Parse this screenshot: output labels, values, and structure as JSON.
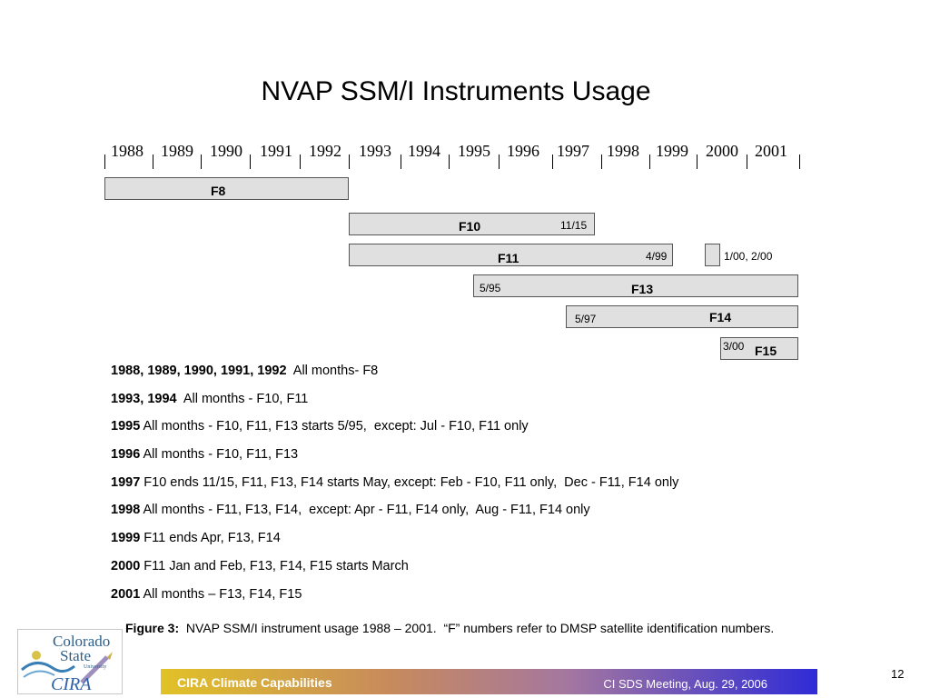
{
  "title": "NVAP SSM/I Instruments Usage",
  "years": [
    "1988",
    "1989",
    "1990",
    "1991",
    "1992",
    "1993",
    "1994",
    "1995",
    "1996",
    "1997",
    "1998",
    "1999",
    "2000",
    "2001"
  ],
  "bars": [
    {
      "name": "F8",
      "start_label": "",
      "end_label": ""
    },
    {
      "name": "F10",
      "start_label": "",
      "end_label": "11/15"
    },
    {
      "name": "F11",
      "start_label": "",
      "end_label": "4/99"
    },
    {
      "name": "F11 2000",
      "start_label": "",
      "end_label": "1/00, 2/00"
    },
    {
      "name": "F13",
      "start_label": "5/95",
      "end_label": ""
    },
    {
      "name": "F14",
      "start_label": "5/97",
      "end_label": ""
    },
    {
      "name": "F15",
      "start_label": "3/00",
      "end_label": ""
    }
  ],
  "bar_labels": {
    "f8": "F8",
    "f10": "F10",
    "f11": "F11",
    "f13": "F13",
    "f14": "F14",
    "f15": "F15"
  },
  "notes": {
    "f10_end": "11/15",
    "f11_end": "4/99",
    "f11_2000": "1/00, 2/00",
    "f13_start": "5/95",
    "f14_start": "5/97",
    "f15_start": "3/00"
  },
  "usage_lines": [
    {
      "years": "1988, 1989, 1990, 1991, 1992",
      "text": "  All months- F8"
    },
    {
      "years": "1993, 1994",
      "text": "  All months - F10, F11"
    },
    {
      "years": "1995",
      "text": " All months - F10, F11, F13 starts 5/95,  except: Jul - F10, F11 only"
    },
    {
      "years": "1996",
      "text": " All months - F10, F11, F13"
    },
    {
      "years": "1997",
      "text": " F10 ends 11/15, F11, F13, F14 starts May, except: Feb - F10, F11 only,  Dec - F11, F14 only"
    },
    {
      "years": "1998",
      "text": " All months - F11, F13, F14,  except: Apr - F11, F14 only,  Aug - F11, F14 only"
    },
    {
      "years": "1999",
      "text": " F11 ends Apr, F13, F14"
    },
    {
      "years": "2000",
      "text": " F11 Jan and Feb, F13, F14, F15 starts March"
    },
    {
      "years": "2001",
      "text": " All months – F13, F14, F15"
    }
  ],
  "caption": {
    "label": "Figure 3:",
    "text": "  NVAP SSM/I instrument usage 1988 – 2001.  “F” numbers refer to DMSP satellite identification numbers."
  },
  "footer": {
    "left": "CIRA Climate Capabilities",
    "right": "CI SDS Meeting, Aug. 29, 2006"
  },
  "page_number": "12",
  "logo": {
    "line1": "Colorado",
    "line2": "State",
    "line3": "University",
    "line4": "CIRA"
  },
  "colors": {
    "bar_fill": "#e0e0e0",
    "footer_start": "#e1c227",
    "footer_end": "#2f2bd6"
  }
}
